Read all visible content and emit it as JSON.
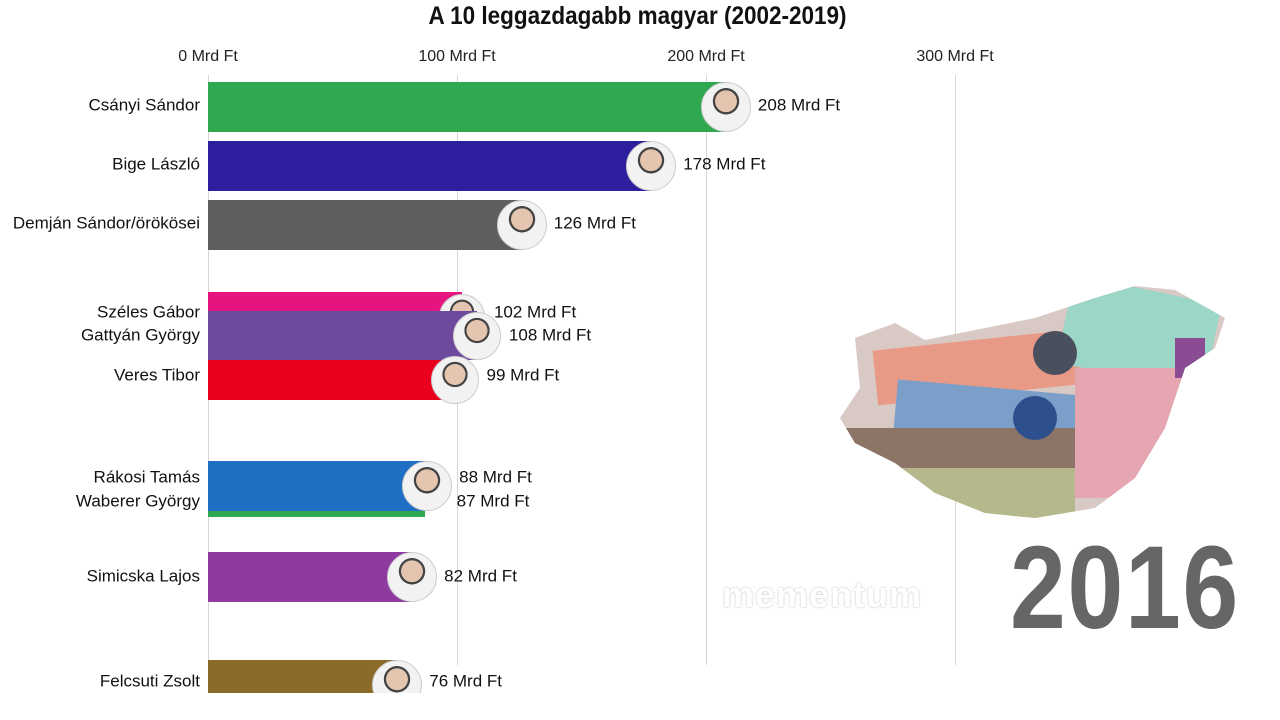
{
  "chart_data": {
    "type": "bar",
    "orientation": "horizontal",
    "title": "A 10 leggazdagabb magyar (2002-2019)",
    "unit": "Mrd Ft",
    "xlim": [
      0,
      320
    ],
    "ticks": [
      "0 Mrd Ft",
      "100 Mrd Ft",
      "200 Mrd Ft",
      "300 Mrd Ft"
    ],
    "tick_values": [
      0,
      100,
      200,
      300
    ],
    "categories": [
      "Csányi Sándor",
      "Bige László",
      "Demján Sándor/örökösei",
      "Széles Gábor",
      "Gattyán György",
      "Veres Tibor",
      "Rákosi Tamás",
      "Waberer György",
      "Simicska Lajos",
      "Felcsuti Zsolt"
    ],
    "values": [
      208,
      178,
      126,
      102,
      108,
      99,
      88,
      87,
      82,
      76
    ],
    "labels": [
      "208 Mrd Ft",
      "178 Mrd Ft",
      "126 Mrd Ft",
      "102 Mrd Ft",
      "108 Mrd Ft",
      "99 Mrd Ft",
      "88 Mrd Ft",
      "87 Mrd Ft",
      "82 Mrd Ft",
      "76 Mrd Ft"
    ],
    "colors": [
      "#2fa84f",
      "#2e1f9e",
      "#5e5e5e",
      "#e6147f",
      "#6e4a9e",
      "#e8001c",
      "#1f6fc4",
      "#2fa84f",
      "#8e3aa0",
      "#8c6a2a"
    ],
    "year": "2016"
  },
  "watermark": "mementum"
}
